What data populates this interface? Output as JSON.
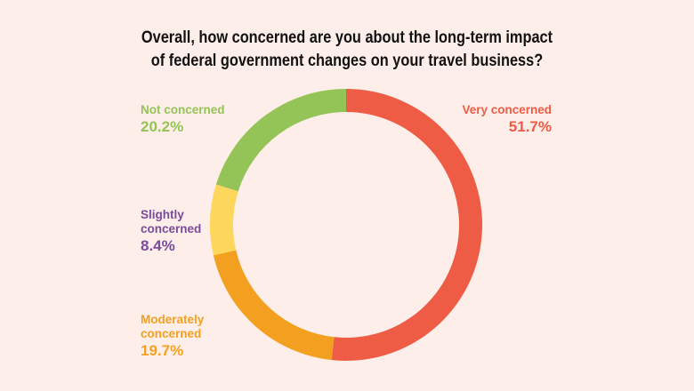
{
  "colors": {
    "background": "#fdeee9",
    "very_concerned": "#ee5c45",
    "moderately_concerned": "#f3a021",
    "slightly_concerned": "#fcd75c",
    "not_concerned": "#94c457",
    "slightly_label": "#7a4b99"
  },
  "chart_data": {
    "type": "pie",
    "variant": "donut",
    "title_lines": [
      "Overall, how concerned are you about the long-term impact",
      "of federal government changes on your travel business?"
    ],
    "slices": [
      {
        "label": "Very concerned",
        "value": 51.7,
        "value_label": "51.7%",
        "color": "#ee5c45"
      },
      {
        "label": "Moderately concerned",
        "label_lines": [
          "Moderately",
          "concerned"
        ],
        "value": 19.7,
        "value_label": "19.7%",
        "color": "#f3a021"
      },
      {
        "label": "Slightly concerned",
        "label_lines": [
          "Slightly",
          "concerned"
        ],
        "value": 8.4,
        "value_label": "8.4%",
        "color": "#fcd75c"
      },
      {
        "label": "Not concerned",
        "value": 20.2,
        "value_label": "20.2%",
        "color": "#94c457"
      }
    ],
    "start": "12 o'clock",
    "direction": "clockwise"
  }
}
